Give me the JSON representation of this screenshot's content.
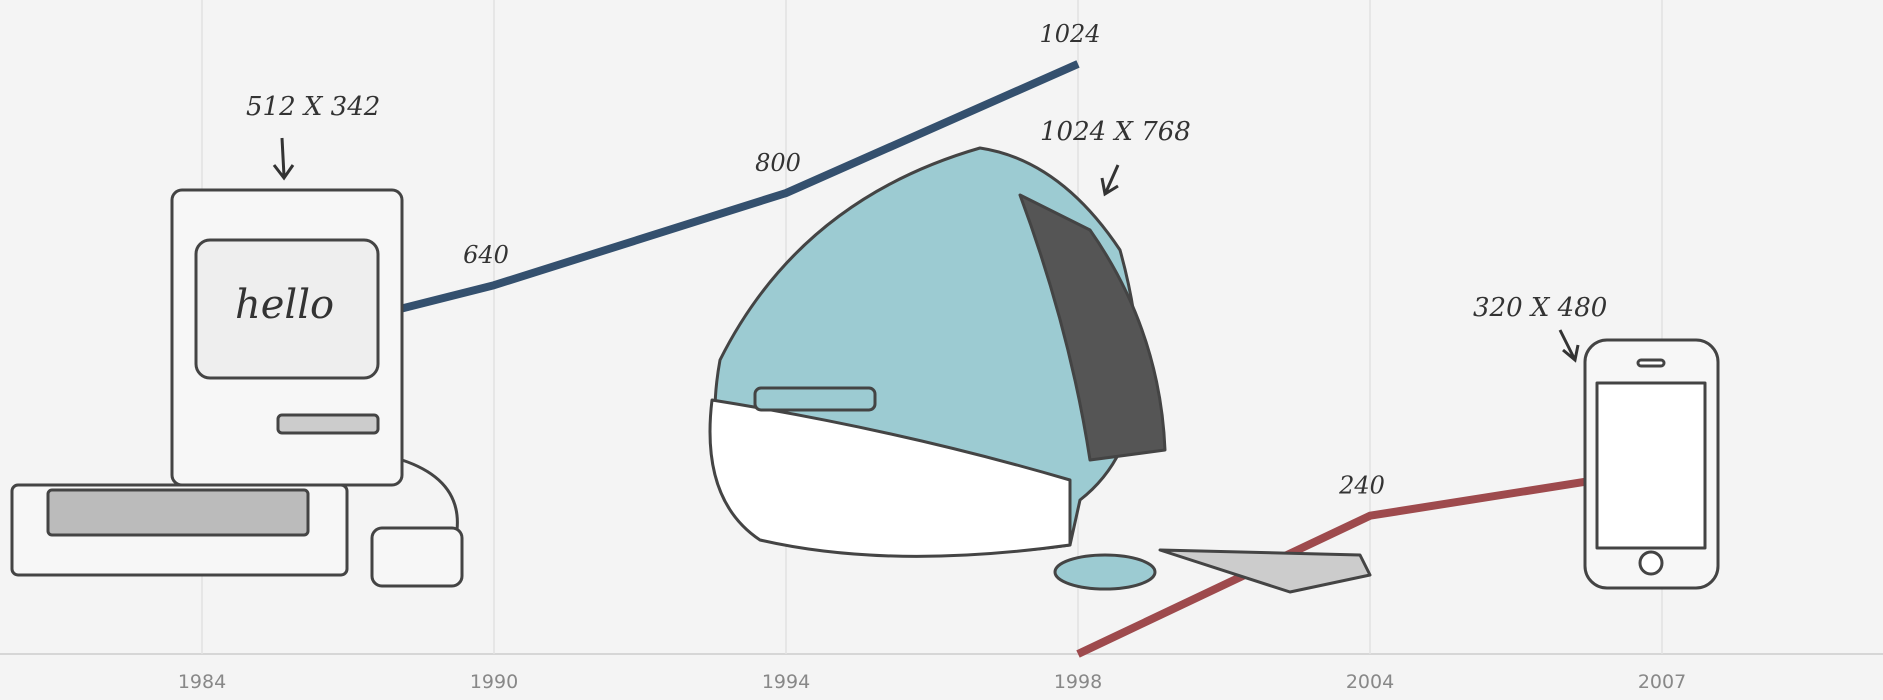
{
  "chart_data": {
    "type": "line",
    "categories": [
      "1984",
      "1990",
      "1994",
      "1998",
      "2004",
      "2007"
    ],
    "series": [
      {
        "color": "#34506e",
        "values": [
          512,
          640,
          800,
          1024,
          null,
          null
        ],
        "value_labels": [
          null,
          "640",
          "800",
          "1024",
          null,
          null
        ]
      },
      {
        "color": "#9e4a4d",
        "values": [
          null,
          null,
          null,
          0,
          240,
          320
        ],
        "value_labels": [
          null,
          null,
          null,
          null,
          "240",
          null
        ]
      }
    ],
    "ylim": [
      0,
      1135
    ],
    "grid": true,
    "annotations": [
      "512 X 342",
      "1024 X 768",
      "320 X 480",
      "hello"
    ]
  }
}
